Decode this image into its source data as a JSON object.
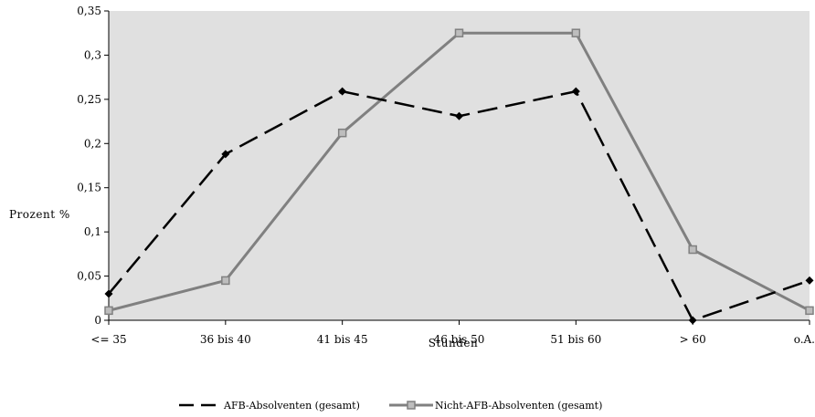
{
  "chart_data": {
    "type": "line",
    "title": "",
    "xlabel": "Stunden",
    "ylabel": "Prozent %",
    "categories": [
      "<= 35",
      "36 bis 40",
      "41 bis 45",
      "46 bis 50",
      "51 bis 60",
      "> 60",
      "o.A."
    ],
    "ylim": [
      0,
      0.35
    ],
    "yticks": [
      "0",
      "0,05",
      "0,1",
      "0,15",
      "0,2",
      "0,25",
      "0,3",
      "0,35"
    ],
    "grid": false,
    "legend_position": "bottom",
    "plot_background": "#e0e0e0",
    "series": [
      {
        "name": "AFB-Absolventen (gesamt)",
        "color": "#000000",
        "style": "dashed",
        "marker": "diamond",
        "values": [
          0.03,
          0.188,
          0.259,
          0.231,
          0.259,
          0.0,
          0.045
        ]
      },
      {
        "name": "Nicht-AFB-Absolventen (gesamt)",
        "color": "#808080",
        "style": "solid",
        "marker": "square",
        "values": [
          0.011,
          0.045,
          0.212,
          0.325,
          0.325,
          0.08,
          0.011
        ]
      }
    ]
  }
}
